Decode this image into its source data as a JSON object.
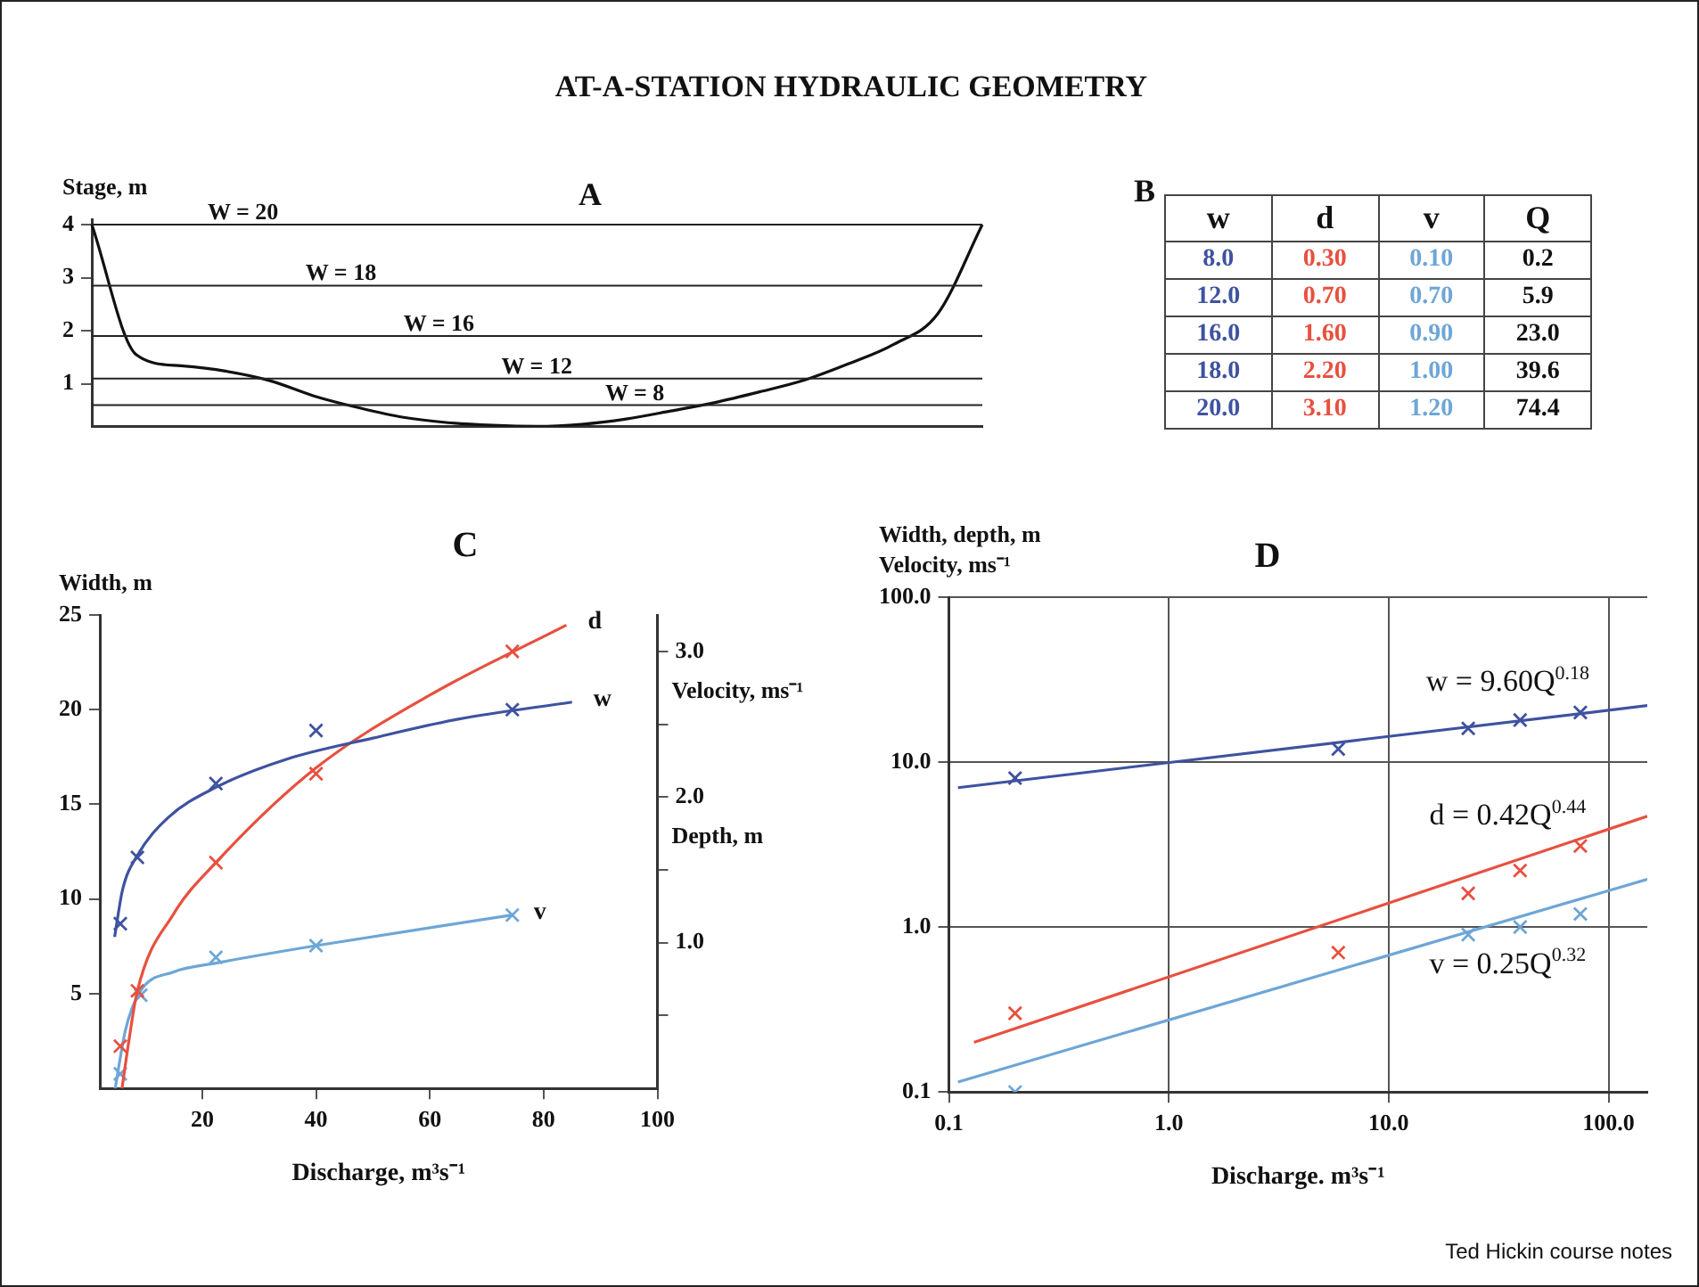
{
  "chart_data": [
    {
      "type": "line",
      "title": "AT-A-STATION HYDRAULIC GEOMETRY",
      "subtitle": "A",
      "ylabel": "Stage, m",
      "categories": [
        null,
        null,
        null,
        null,
        null,
        null,
        null,
        null,
        null,
        null,
        null,
        null,
        null,
        null,
        null,
        null,
        null,
        null,
        null,
        null,
        null
      ],
      "values": [
        4.0,
        1.55,
        1.34,
        1.24,
        1.06,
        0.77,
        0.55,
        0.37,
        0.27,
        0.22,
        0.2,
        0.24,
        0.34,
        0.49,
        0.65,
        0.85,
        1.07,
        1.38,
        1.74,
        2.32,
        4.0
      ],
      "color": "#111111",
      "ylim": [
        0.2,
        4.1
      ],
      "yticks": [
        1,
        2,
        3,
        4
      ],
      "tick_labels": "y",
      "ref_lines": [
        {
          "axis": "y",
          "value": 4.0
        },
        {
          "axis": "y",
          "value": 2.85
        },
        {
          "axis": "y",
          "value": 1.9
        },
        {
          "axis": "y",
          "value": 1.1
        },
        {
          "axis": "y",
          "value": 0.6
        }
      ],
      "annotations": [
        {
          "text": "W = 20",
          "y": 4.0
        },
        {
          "text": "W = 18",
          "y": 2.85
        },
        {
          "text": "W = 16",
          "y": 1.9
        },
        {
          "text": "W = 12",
          "y": 1.1
        },
        {
          "text": "W = 8",
          "y": 0.6
        }
      ]
    },
    {
      "type": "other",
      "title": "B",
      "categories": [
        "w",
        "d",
        "v",
        "Q"
      ],
      "colors": [
        "#3e52a0",
        "#e8503f",
        "#6ea6d6",
        "#111111"
      ],
      "cell_labels": [
        [
          "8.0",
          "0.30",
          "0.10",
          "0.2"
        ],
        [
          "12.0",
          "0.70",
          "0.70",
          "5.9"
        ],
        [
          "16.0",
          "1.60",
          "0.90",
          "23.0"
        ],
        [
          "18.0",
          "2.20",
          "1.00",
          "39.6"
        ],
        [
          "20.0",
          "3.10",
          "1.20",
          "74.4"
        ]
      ]
    },
    {
      "type": "line",
      "title": "C",
      "xlabel": "Discharge, m³s⁻¹",
      "ylabel": "Width, m",
      "y2label": "Velocity, ms⁻¹",
      "annotations": [
        "Depth, m"
      ],
      "xlim": [
        2,
        100
      ],
      "xticks": [
        20,
        40,
        60,
        80,
        100
      ],
      "ylim": [
        0,
        25
      ],
      "yticks": [
        5,
        10,
        15,
        20,
        25
      ],
      "y2lim": [
        0,
        3.25
      ],
      "y2ticks": [
        {
          "value": 0.5,
          "label": null
        },
        {
          "value": 1,
          "label": "1.0"
        },
        {
          "value": 1.5,
          "label": null
        },
        {
          "value": 2,
          "label": "2.0"
        },
        {
          "value": 2.5,
          "label": null
        },
        {
          "value": 3,
          "label": "3.0"
        }
      ],
      "marker": "cross",
      "series": [
        {
          "name": "w",
          "type": "line",
          "marker": "none",
          "color": "#3e52a0",
          "x": [
            4.6,
            6,
            8.6,
            14,
            22.4,
            35,
            50,
            65,
            85
          ],
          "values": [
            8.0,
            10.5,
            12.3,
            14.3,
            15.9,
            17.4,
            18.5,
            19.5,
            20.4
          ]
        },
        {
          "type": "scatter",
          "color": "#3e52a0",
          "x": [
            5.6,
            8.6,
            22.4,
            40,
            74.5
          ],
          "values": [
            8.7,
            12.2,
            16.1,
            18.9,
            20.0
          ]
        },
        {
          "name": "d",
          "type": "line",
          "marker": "none",
          "axis": "y2",
          "color": "#e8503f",
          "x": [
            5.9,
            7,
            8.6,
            15,
            22.4,
            40,
            60,
            84
          ],
          "values": [
            0,
            0.3,
            0.67,
            1.2,
            1.55,
            2.2,
            2.7,
            3.18
          ]
        },
        {
          "type": "scatter",
          "axis": "y2",
          "color": "#e8503f",
          "x": [
            5.6,
            8.6,
            22.4,
            40,
            74.5
          ],
          "values": [
            0.29,
            0.67,
            1.55,
            2.16,
            3.0
          ]
        },
        {
          "name": "v",
          "type": "line",
          "marker": "none",
          "axis": "y2",
          "color": "#6ea6d6",
          "x": [
            4.7,
            6.5,
            9,
            15,
            22.4,
            40,
            74.5
          ],
          "values": [
            0,
            0.4,
            0.66,
            0.8,
            0.86,
            0.98,
            1.19
          ]
        },
        {
          "type": "scatter",
          "axis": "y2",
          "color": "#6ea6d6",
          "x": [
            5.6,
            9.2,
            22.4,
            40,
            74.5
          ],
          "values": [
            0.1,
            0.64,
            0.9,
            0.98,
            1.19
          ]
        }
      ]
    },
    {
      "type": "line",
      "title": "D",
      "xlabel": "Discharge. m³s⁻¹",
      "ylabel": "Width, depth, m\nVelocity, ms⁻¹",
      "log": "xy",
      "grid": true,
      "marker": "cross",
      "xlim": [
        0.1,
        150
      ],
      "xticks": [
        0.1,
        {
          "value": 1,
          "label": "1.0"
        },
        {
          "value": 10,
          "label": "10.0"
        },
        {
          "value": 100,
          "label": "100.0"
        }
      ],
      "ylim": [
        0.1,
        100
      ],
      "yticks": [
        0.1,
        {
          "value": 1,
          "label": "1.0"
        },
        {
          "value": 10,
          "label": "10.0"
        },
        {
          "value": 100,
          "label": "100.0"
        }
      ],
      "annotations": [
        "w = 9.60Q$^{0.18}$",
        "d = 0.42Q$^{0.44}$",
        "v = 0.25Q$^{0.32}$",
        "Ted Hickin course notes"
      ],
      "series": [
        {
          "type": "line",
          "marker": "none",
          "color": "#3e52a0",
          "x": [
            0.11,
            150
          ],
          "values": [
            7.0,
            22
          ]
        },
        {
          "type": "scatter",
          "color": "#3e52a0",
          "x": [
            0.2,
            5.9,
            23,
            39.6,
            74.4
          ],
          "values": [
            8,
            12,
            16,
            18,
            20
          ]
        },
        {
          "type": "line",
          "marker": "none",
          "color": "#e8503f",
          "x": [
            0.13,
            150
          ],
          "values": [
            0.2,
            4.7
          ]
        },
        {
          "type": "scatter",
          "color": "#e8503f",
          "x": [
            0.2,
            5.9,
            23,
            39.6,
            74.4
          ],
          "values": [
            0.3,
            0.7,
            1.6,
            2.2,
            3.1
          ]
        },
        {
          "type": "line",
          "marker": "none",
          "color": "#6ea6d6",
          "x": [
            0.11,
            150
          ],
          "values": [
            0.115,
            1.95
          ]
        },
        {
          "type": "scatter",
          "color": "#6ea6d6",
          "x": [
            0.2,
            5.9,
            23,
            39.6,
            74.4
          ],
          "values": [
            0.1,
            null,
            0.9,
            1.0,
            1.2
          ]
        }
      ]
    }
  ]
}
